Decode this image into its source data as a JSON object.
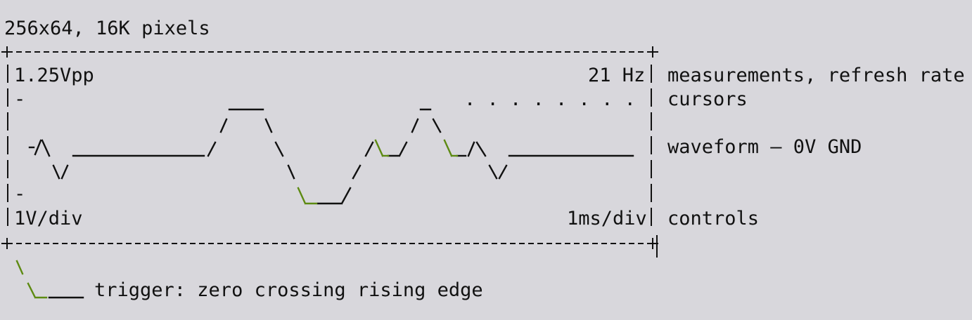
{
  "header": {
    "resolution": "256x64, 16K pixels"
  },
  "screen": {
    "vpp": "1.25Vpp",
    "refresh": "21 Hz",
    "volts_div": "1V/div",
    "time_div": "1ms/div",
    "cursor_mark_top": "-",
    "cursor_mark_bottom": "-",
    "cursor_dots": ". . . . . . . ."
  },
  "annotations": {
    "measurements": "measurements, refresh rate",
    "cursors": "cursors",
    "waveform": "waveform – 0V GND",
    "controls": "controls"
  },
  "legend": {
    "trigger": "trigger: zero crossing rising edge"
  },
  "colors": {
    "trigger_accent": "#5d8a12",
    "ink": "#111111",
    "background": "#d8d7dc"
  }
}
